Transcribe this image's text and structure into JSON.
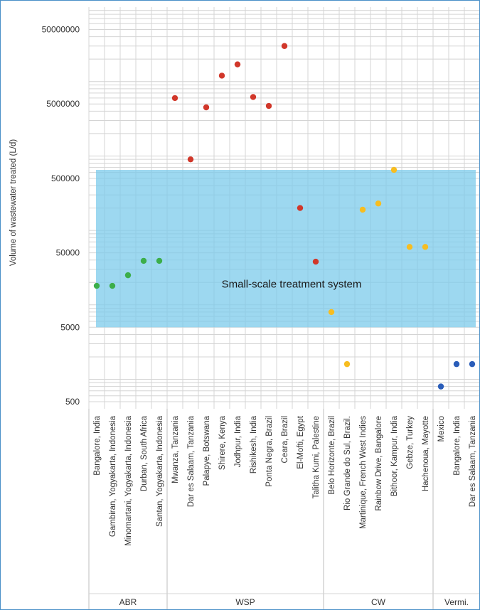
{
  "chart_data": {
    "type": "scatter",
    "y_scale": "log",
    "ylim": [
      500,
      100000000
    ],
    "grid": true,
    "ylabel": "Volume of wastewater treated (L/d)",
    "y_ticks": [
      {
        "value": 500,
        "label": "500"
      },
      {
        "value": 5000,
        "label": "5000"
      },
      {
        "value": 50000,
        "label": "50000"
      },
      {
        "value": 500000,
        "label": "500000"
      },
      {
        "value": 5000000,
        "label": "5000000"
      },
      {
        "value": 50000000,
        "label": "50000000"
      }
    ],
    "shaded_region": {
      "y0": 5000,
      "y1": 650000,
      "color": "#7ccbeb",
      "label": "Small-scale treatment system"
    },
    "groups": [
      {
        "label": "ABR",
        "color": "#3cae4a",
        "categories": [
          "Bangalore, India",
          "Gambiran, Yogyakarta, Indonesia",
          "Minomartani, Yogyakarta, Indonesia",
          "Durban, South Africa",
          "Santan, Yogyakarta, Indonesia"
        ],
        "values": [
          18000,
          18000,
          25000,
          39000,
          39000
        ]
      },
      {
        "label": "WSP",
        "color": "#d1372a",
        "categories": [
          "Mwanza, Tanzania",
          "Dar es Salaam, Tanzania",
          "Palapye, Botswana",
          "Shirere, Kenya",
          "Jodhpur, India",
          "Rishikesh, India",
          "Ponta Negra, Brazil",
          "Ceara, Brazil",
          "El-Mofti, Egypt",
          "Talitha Kumi, Palestine"
        ],
        "values": [
          6000000,
          900000,
          4500000,
          12000000,
          17000000,
          6200000,
          4700000,
          30000000,
          200000,
          38000
        ]
      },
      {
        "label": "CW",
        "color": "#f7bd20",
        "categories": [
          "Belo Horizonte, Brazil",
          "Rio Grande do Sul, Brazil.",
          "Martinique, French West Indies",
          "Rainbow Drive, Bangalore",
          "Bithoor, Kampur, India",
          "Gebze, Turkey",
          "Hachenoua, Mayotte"
        ],
        "values": [
          8000,
          1600,
          190000,
          230000,
          650000,
          60000,
          60000
        ]
      },
      {
        "label": "Vermi.",
        "color": "#2a5db9",
        "categories": [
          "Mexico",
          "Bangalore, India",
          "Dar es Salaam, Tanzania"
        ],
        "values": [
          800,
          1600,
          1600
        ]
      }
    ]
  }
}
